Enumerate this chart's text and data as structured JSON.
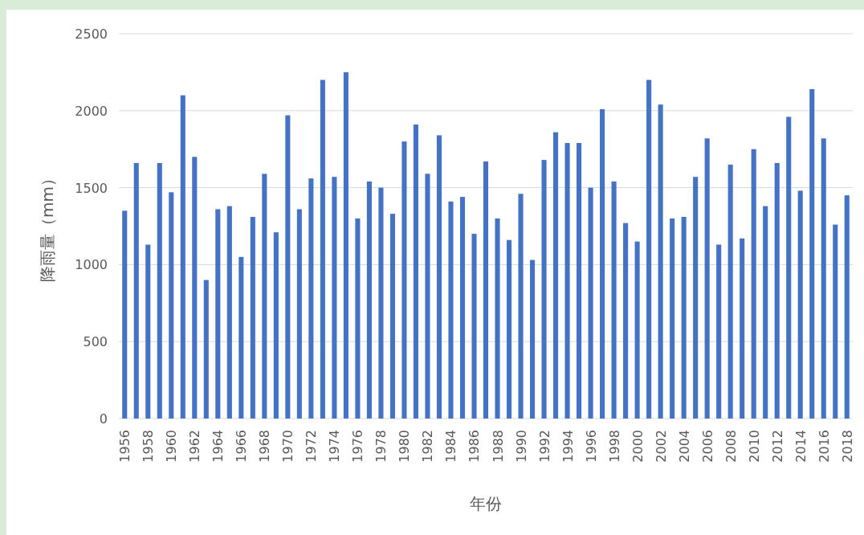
{
  "chart_data": {
    "type": "bar",
    "xlabel": "年份",
    "ylabel": "降雨量（mm）",
    "categories": [
      "1956",
      null,
      "1958",
      null,
      "1960",
      null,
      "1962",
      null,
      "1964",
      null,
      "1966",
      null,
      "1968",
      null,
      "1970",
      null,
      "1972",
      null,
      "1974",
      null,
      "1976",
      null,
      "1978",
      null,
      "1980",
      null,
      "1982",
      null,
      "1984",
      null,
      "1986",
      null,
      "1988",
      null,
      "1990",
      null,
      "1992",
      null,
      "1994",
      null,
      "1996",
      null,
      "1998",
      null,
      "2000",
      null,
      "2002",
      null,
      "2004",
      null,
      "2006",
      null,
      "2008",
      null,
      "2010",
      null,
      "2012",
      null,
      "2014",
      null,
      "2016",
      null,
      "2018"
    ],
    "values": [
      1350,
      1660,
      1130,
      1660,
      1470,
      2100,
      1700,
      900,
      1360,
      1380,
      1050,
      1310,
      1590,
      1210,
      1970,
      1360,
      1560,
      2200,
      1570,
      2250,
      1300,
      1540,
      1500,
      1330,
      1800,
      1910,
      1590,
      1840,
      1410,
      1440,
      1200,
      1670,
      1300,
      1160,
      1460,
      1030,
      1680,
      1860,
      1790,
      1790,
      1500,
      2010,
      1540,
      1270,
      1150,
      2200,
      2040,
      1300,
      1310,
      1570,
      1820,
      1130,
      1650,
      1170,
      1750,
      1380,
      1660,
      1960,
      1480,
      2140,
      1820,
      1260,
      1450
    ],
    "color": "#4472c4",
    "ylim": [
      0,
      2500
    ],
    "yticks": [
      0,
      500,
      1000,
      1500,
      2000,
      2500
    ],
    "grid": "y"
  }
}
